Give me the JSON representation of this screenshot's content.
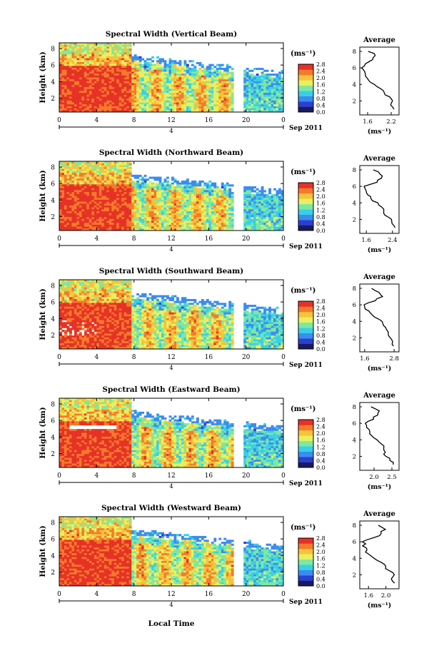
{
  "colorbar_unit": "(ms⁻¹)",
  "avg_title": "Average",
  "avg_unit": "(ms⁻¹)",
  "ylabel": "Height (km)",
  "yticks": [
    "2",
    "4",
    "6",
    "8"
  ],
  "xticks": [
    "0",
    "4",
    "8",
    "12",
    "16",
    "20",
    "0"
  ],
  "date_label": "Sep 2011",
  "day_labels": [
    "4",
    "4",
    "4",
    "4",
    "4"
  ],
  "xlabel": "Local Time",
  "colorbar_ticks": [
    "0.0",
    "0.4",
    "0.8",
    "1.2",
    "1.6",
    "2.0",
    "2.4",
    "2.8"
  ],
  "colors": {
    "scale": [
      "#1a1a60",
      "#2b3fd0",
      "#3b8cf0",
      "#38d0e8",
      "#7ee8a0",
      "#e8f060",
      "#f7c33a",
      "#f47a2c",
      "#e63226"
    ]
  },
  "chart_data": [
    {
      "type": "heatmap",
      "title": "Spectral Width (Vertical Beam)",
      "xlim": [
        0,
        24
      ],
      "ylim": [
        1,
        8
      ],
      "avg_profile": {
        "xticks": [
          "1.6",
          "2.2"
        ],
        "xlim": [
          1.4,
          2.4
        ],
        "heights": [
          1,
          1.5,
          2,
          2.5,
          3,
          3.5,
          4,
          4.5,
          5,
          5.5,
          6,
          6.5,
          7,
          7.5,
          8
        ],
        "values": [
          2.25,
          2.2,
          2.2,
          2.15,
          2.05,
          1.95,
          1.75,
          1.6,
          1.55,
          1.5,
          1.45,
          1.55,
          1.7,
          1.8,
          1.65
        ]
      }
    },
    {
      "type": "heatmap",
      "title": "Spectral Width (Northward Beam)",
      "xlim": [
        0,
        24
      ],
      "ylim": [
        1,
        8
      ],
      "avg_profile": {
        "xticks": [
          "1.6",
          "2.4"
        ],
        "xlim": [
          1.4,
          2.6
        ],
        "heights": [
          1,
          1.5,
          2,
          2.5,
          3,
          3.5,
          4,
          4.5,
          5,
          5.5,
          6,
          6.5,
          7,
          7.5,
          8
        ],
        "values": [
          2.45,
          2.4,
          2.35,
          2.2,
          2.1,
          2.05,
          1.95,
          1.75,
          1.65,
          1.55,
          1.5,
          1.9,
          2.1,
          2.0,
          1.85
        ]
      }
    },
    {
      "type": "heatmap",
      "title": "Spectral Width (Southward Beam)",
      "xlim": [
        0,
        24
      ],
      "ylim": [
        1,
        8
      ],
      "avg_profile": {
        "xticks": [
          "1.6",
          "2.8"
        ],
        "xlim": [
          1.4,
          3.0
        ],
        "heights": [
          1,
          1.5,
          2,
          2.5,
          3,
          3.5,
          4,
          4.5,
          5,
          5.5,
          6,
          6.5,
          7,
          7.5,
          8
        ],
        "values": [
          2.8,
          2.75,
          2.65,
          2.55,
          2.5,
          2.4,
          2.3,
          2.0,
          1.8,
          1.65,
          1.6,
          2.0,
          2.3,
          2.15,
          1.9
        ]
      }
    },
    {
      "type": "heatmap",
      "title": "Spectral Width (Eastward Beam)",
      "xlim": [
        0,
        24
      ],
      "ylim": [
        1,
        8
      ],
      "avg_profile": {
        "xticks": [
          "2.0",
          "2.5"
        ],
        "xlim": [
          1.6,
          2.7
        ],
        "heights": [
          1,
          1.5,
          2,
          2.5,
          3,
          3.5,
          4,
          4.5,
          5,
          5.5,
          6,
          6.5,
          7,
          7.5,
          8
        ],
        "values": [
          2.55,
          2.45,
          2.35,
          2.3,
          2.25,
          2.2,
          2.1,
          1.95,
          1.9,
          1.8,
          1.75,
          1.95,
          2.1,
          2.15,
          1.9
        ]
      }
    },
    {
      "type": "heatmap",
      "title": "Spectral Width (Westward Beam)",
      "xlim": [
        0,
        24
      ],
      "ylim": [
        1,
        8
      ],
      "avg_profile": {
        "xticks": [
          "1.6",
          "2.0"
        ],
        "xlim": [
          1.4,
          2.3
        ],
        "heights": [
          1,
          1.5,
          2,
          2.5,
          3,
          3.5,
          4,
          4.5,
          5,
          5.5,
          6,
          6.5,
          7,
          7.5,
          8
        ],
        "values": [
          2.2,
          2.15,
          2.2,
          2.1,
          2.0,
          1.9,
          1.75,
          1.6,
          1.55,
          1.5,
          1.45,
          1.7,
          1.9,
          1.95,
          1.8
        ]
      }
    }
  ]
}
